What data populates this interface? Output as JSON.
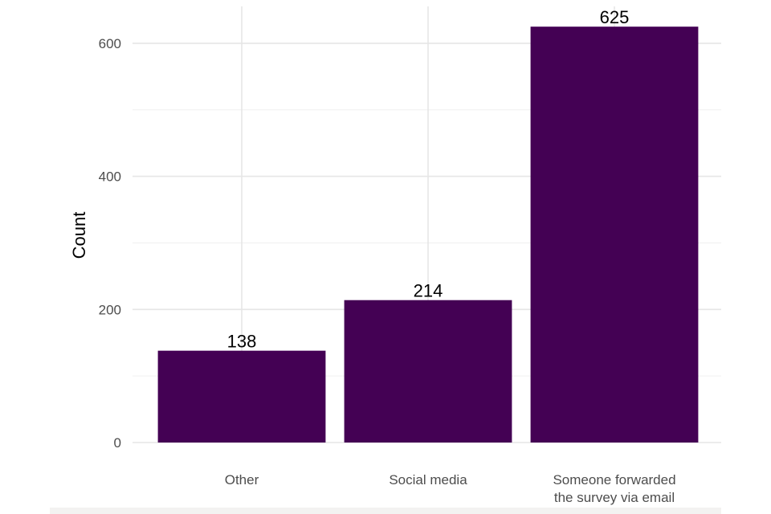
{
  "chart_data": {
    "type": "bar",
    "categories": [
      "Other",
      "Social media",
      "Someone forwarded the survey via email"
    ],
    "category_lines": [
      [
        "Other"
      ],
      [
        "Social media"
      ],
      [
        "Someone forwarded",
        "the survey via email"
      ]
    ],
    "values": [
      138,
      214,
      625
    ],
    "data_labels": [
      "138",
      "214",
      "625"
    ],
    "xlabel": "",
    "ylabel": "Count",
    "ylim": [
      0,
      650
    ],
    "yticks": [
      0,
      200,
      400,
      600
    ],
    "grid": true,
    "bar_color": "#440154"
  }
}
